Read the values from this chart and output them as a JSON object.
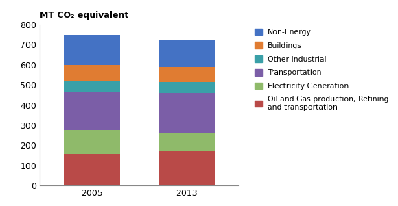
{
  "years": [
    "2005",
    "2013"
  ],
  "sectors": [
    "Oil and Gas production, Refining\nand transportation",
    "Electricity Generation",
    "Transportation",
    "Other Industrial",
    "Buildings",
    "Non-Energy"
  ],
  "values": {
    "2005": [
      155,
      120,
      190,
      55,
      80,
      150
    ],
    "2013": [
      175,
      85,
      200,
      55,
      75,
      135
    ]
  },
  "colors": [
    "#b94a48",
    "#8fba6a",
    "#7b5ea7",
    "#3aa0a8",
    "#e07c32",
    "#4472c4"
  ],
  "ylabel": "MT CO₂ equivalent",
  "ylim": [
    0,
    800
  ],
  "yticks": [
    0,
    100,
    200,
    300,
    400,
    500,
    600,
    700,
    800
  ],
  "bar_width": 0.6,
  "background_color": "#ffffff",
  "legend_labels": [
    "Non-Energy",
    "Buildings",
    "Other Industrial",
    "Transportation",
    "Electricity Generation",
    "Oil and Gas production, Refining\nand transportation"
  ],
  "legend_colors": [
    "#4472c4",
    "#e07c32",
    "#3aa0a8",
    "#7b5ea7",
    "#8fba6a",
    "#b94a48"
  ]
}
